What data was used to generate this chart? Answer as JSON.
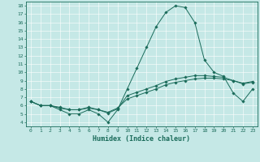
{
  "x": [
    0,
    1,
    2,
    3,
    4,
    5,
    6,
    7,
    8,
    9,
    10,
    11,
    12,
    13,
    14,
    15,
    16,
    17,
    18,
    19,
    20,
    21,
    22,
    23
  ],
  "line1": [
    6.5,
    6.0,
    6.0,
    5.5,
    5.0,
    5.0,
    5.5,
    5.0,
    4.0,
    5.5,
    8.0,
    10.5,
    13.0,
    15.5,
    17.2,
    18.0,
    17.8,
    16.0,
    11.5,
    10.0,
    9.5,
    7.5,
    6.5,
    8.0
  ],
  "line2": [
    6.5,
    6.0,
    6.0,
    5.8,
    5.5,
    5.5,
    5.8,
    5.5,
    5.2,
    5.7,
    6.8,
    7.2,
    7.6,
    8.0,
    8.5,
    8.8,
    9.0,
    9.2,
    9.3,
    9.3,
    9.2,
    9.0,
    8.7,
    8.9
  ],
  "line3": [
    6.5,
    6.0,
    6.0,
    5.7,
    5.5,
    5.5,
    5.7,
    5.5,
    5.1,
    5.6,
    7.2,
    7.6,
    8.0,
    8.4,
    8.9,
    9.2,
    9.4,
    9.6,
    9.6,
    9.5,
    9.4,
    9.0,
    8.6,
    8.8
  ],
  "bg_color": "#c5e8e6",
  "line_color": "#1a6b5a",
  "xlabel": "Humidex (Indice chaleur)",
  "yticks": [
    4,
    5,
    6,
    7,
    8,
    9,
    10,
    11,
    12,
    13,
    14,
    15,
    16,
    17,
    18
  ],
  "xticks": [
    0,
    1,
    2,
    3,
    4,
    5,
    6,
    7,
    8,
    9,
    10,
    11,
    12,
    13,
    14,
    15,
    16,
    17,
    18,
    19,
    20,
    21,
    22,
    23
  ],
  "ylim": [
    3.5,
    18.5
  ],
  "xlim": [
    -0.5,
    23.5
  ],
  "grid_color": "#ffffff",
  "tick_fontsize": 4.5,
  "xlabel_fontsize": 6.0
}
